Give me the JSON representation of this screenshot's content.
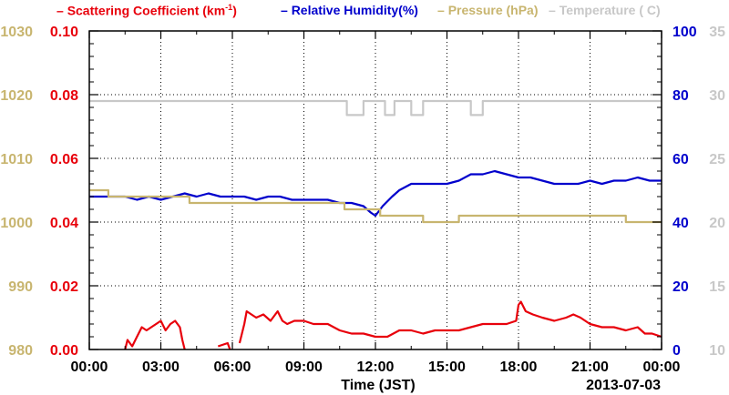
{
  "chart_data": {
    "type": "line",
    "xlabel": "Time (JST)",
    "date_label": "2013-07-03",
    "x_ticks": [
      "00:00",
      "03:00",
      "06:00",
      "09:00",
      "12:00",
      "15:00",
      "18:00",
      "21:00",
      "00:00"
    ],
    "xlim": [
      0,
      24
    ],
    "grid": true,
    "legend_position": "top",
    "axes": {
      "scattering": {
        "side": "left-inner",
        "range": [
          0,
          0.1
        ],
        "ticks": [
          "0.00",
          "0.02",
          "0.04",
          "0.06",
          "0.08",
          "0.10"
        ],
        "color": "#e8000b"
      },
      "pressure": {
        "side": "left-outer",
        "range": [
          980,
          1030
        ],
        "ticks": [
          "980",
          "990",
          "1000",
          "1010",
          "1020",
          "1030"
        ],
        "color": "#c8b56f"
      },
      "humidity": {
        "side": "right-inner",
        "range": [
          0,
          100
        ],
        "ticks": [
          "0",
          "20",
          "40",
          "60",
          "80",
          "100"
        ],
        "color": "#0000cc"
      },
      "temperature": {
        "side": "right-outer",
        "range": [
          10,
          35
        ],
        "ticks": [
          "10",
          "15",
          "20",
          "25",
          "30",
          "35"
        ],
        "color": "#c8c8c8"
      }
    },
    "legend": {
      "dash": "–",
      "scattering": {
        "pre": "Scattering Coefficient (km",
        "sup": "-1",
        "post": ")"
      },
      "humidity": "Relative Humidity(%)",
      "pressure": "Pressure (hPa)",
      "temperature": "Temperature (  C)"
    },
    "series": [
      {
        "name": "Scattering Coefficient (km-1)",
        "axis": "scattering",
        "color": "#e8000b",
        "segments": [
          [
            [
              1.5,
              0.0
            ],
            [
              1.6,
              0.003
            ],
            [
              1.8,
              0.001
            ],
            [
              2.0,
              0.004
            ],
            [
              2.2,
              0.007
            ],
            [
              2.4,
              0.006
            ],
            [
              2.6,
              0.007
            ],
            [
              2.8,
              0.008
            ],
            [
              3.0,
              0.009
            ],
            [
              3.2,
              0.006
            ],
            [
              3.4,
              0.008
            ],
            [
              3.6,
              0.009
            ],
            [
              3.8,
              0.007
            ],
            [
              3.9,
              0.003
            ],
            [
              4.0,
              0.0
            ]
          ],
          [
            [
              5.4,
              0.001
            ],
            [
              5.8,
              0.002
            ],
            [
              5.9,
              0.0
            ]
          ],
          [
            [
              6.3,
              0.002
            ],
            [
              6.5,
              0.008
            ],
            [
              6.6,
              0.012
            ],
            [
              6.8,
              0.011
            ],
            [
              7.0,
              0.01
            ],
            [
              7.3,
              0.011
            ],
            [
              7.6,
              0.009
            ],
            [
              7.9,
              0.012
            ],
            [
              8.1,
              0.009
            ],
            [
              8.3,
              0.008
            ],
            [
              8.6,
              0.009
            ],
            [
              9.0,
              0.009
            ],
            [
              9.4,
              0.008
            ],
            [
              10.0,
              0.008
            ],
            [
              10.5,
              0.006
            ],
            [
              11.0,
              0.005
            ],
            [
              11.5,
              0.005
            ],
            [
              12.0,
              0.004
            ],
            [
              12.5,
              0.004
            ],
            [
              13.0,
              0.006
            ],
            [
              13.5,
              0.006
            ],
            [
              14.0,
              0.005
            ],
            [
              14.5,
              0.006
            ],
            [
              15.0,
              0.006
            ],
            [
              15.5,
              0.006
            ],
            [
              16.0,
              0.007
            ],
            [
              16.5,
              0.008
            ],
            [
              17.0,
              0.008
            ],
            [
              17.5,
              0.008
            ],
            [
              17.9,
              0.009
            ],
            [
              18.0,
              0.014
            ],
            [
              18.1,
              0.015
            ],
            [
              18.3,
              0.012
            ],
            [
              18.6,
              0.011
            ],
            [
              19.0,
              0.01
            ],
            [
              19.5,
              0.009
            ],
            [
              20.0,
              0.01
            ],
            [
              20.3,
              0.011
            ],
            [
              20.6,
              0.01
            ],
            [
              21.0,
              0.008
            ],
            [
              21.5,
              0.007
            ],
            [
              22.0,
              0.007
            ],
            [
              22.5,
              0.006
            ],
            [
              23.0,
              0.007
            ],
            [
              23.3,
              0.005
            ],
            [
              23.6,
              0.005
            ],
            [
              24.0,
              0.004
            ]
          ]
        ]
      },
      {
        "name": "Relative Humidity(%)",
        "axis": "humidity",
        "color": "#0000cc",
        "segments": [
          [
            [
              0,
              48
            ],
            [
              1.5,
              48
            ],
            [
              2.0,
              47
            ],
            [
              2.5,
              48
            ],
            [
              3.0,
              47
            ],
            [
              3.5,
              48
            ],
            [
              4.0,
              49
            ],
            [
              4.5,
              48
            ],
            [
              5.0,
              49
            ],
            [
              5.5,
              48
            ],
            [
              6.0,
              48
            ],
            [
              6.5,
              48
            ],
            [
              7.0,
              47
            ],
            [
              7.5,
              48
            ],
            [
              8.0,
              48
            ],
            [
              8.5,
              47
            ],
            [
              9.0,
              47
            ],
            [
              9.5,
              47
            ],
            [
              10.0,
              47
            ],
            [
              10.5,
              46
            ],
            [
              11.0,
              46
            ],
            [
              11.5,
              45
            ],
            [
              11.8,
              43
            ],
            [
              12.0,
              42
            ],
            [
              12.3,
              45
            ],
            [
              12.7,
              48
            ],
            [
              13.0,
              50
            ],
            [
              13.5,
              52
            ],
            [
              14.0,
              52
            ],
            [
              14.5,
              52
            ],
            [
              15.0,
              52
            ],
            [
              15.5,
              53
            ],
            [
              16.0,
              55
            ],
            [
              16.5,
              55
            ],
            [
              17.0,
              56
            ],
            [
              17.5,
              55
            ],
            [
              18.0,
              54
            ],
            [
              18.5,
              54
            ],
            [
              19.0,
              53
            ],
            [
              19.5,
              52
            ],
            [
              20.0,
              52
            ],
            [
              20.5,
              52
            ],
            [
              21.0,
              53
            ],
            [
              21.5,
              52
            ],
            [
              22.0,
              53
            ],
            [
              22.5,
              53
            ],
            [
              23.0,
              54
            ],
            [
              23.5,
              53
            ],
            [
              24.0,
              53
            ]
          ]
        ]
      },
      {
        "name": "Pressure (hPa)",
        "axis": "pressure",
        "color": "#c8b56f",
        "segments": [
          [
            [
              0,
              1005
            ],
            [
              0.8,
              1005
            ],
            [
              0.8,
              1004
            ],
            [
              4.2,
              1004
            ],
            [
              4.2,
              1003
            ],
            [
              10.7,
              1003
            ],
            [
              10.7,
              1002
            ],
            [
              12.2,
              1002
            ],
            [
              12.2,
              1001
            ],
            [
              14.0,
              1001
            ],
            [
              14.0,
              1000
            ],
            [
              15.5,
              1000
            ],
            [
              15.5,
              1001
            ],
            [
              22.5,
              1001
            ],
            [
              22.5,
              1000
            ],
            [
              24,
              1000
            ]
          ]
        ]
      },
      {
        "name": "Temperature (C)",
        "axis": "temperature",
        "color": "#c8c8c8",
        "segments": [
          [
            [
              0,
              29.5
            ],
            [
              10.8,
              29.5
            ],
            [
              10.8,
              28.4
            ],
            [
              11.5,
              28.4
            ],
            [
              11.5,
              29.5
            ],
            [
              12.4,
              29.5
            ],
            [
              12.4,
              28.4
            ],
            [
              12.8,
              28.4
            ],
            [
              12.8,
              29.5
            ],
            [
              13.5,
              29.5
            ],
            [
              13.5,
              28.4
            ],
            [
              14.0,
              28.4
            ],
            [
              14.0,
              29.5
            ],
            [
              16.0,
              29.5
            ],
            [
              16.0,
              28.4
            ],
            [
              16.5,
              28.4
            ],
            [
              16.5,
              29.5
            ],
            [
              24,
              29.5
            ]
          ]
        ]
      }
    ]
  }
}
